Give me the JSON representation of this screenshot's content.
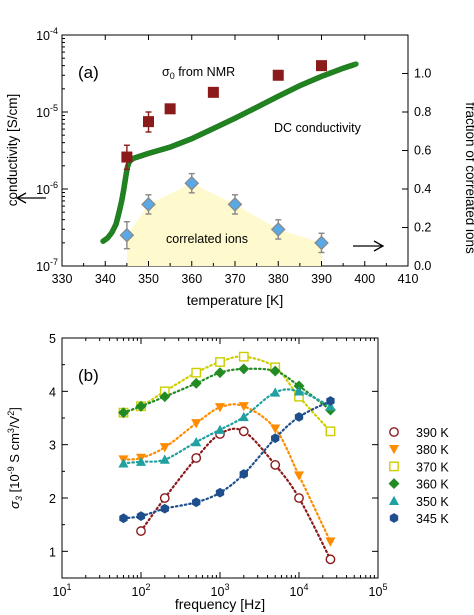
{
  "chart_data": [
    {
      "type": "scatter",
      "panel_label": "(a)",
      "xlabel": "temperature [K]",
      "ylabel": "conductivity [S/cm]",
      "y2label": "fraction of correlated ions",
      "xlim": [
        330,
        410
      ],
      "ylim": [
        1e-07,
        0.0001
      ],
      "yscale": "log",
      "y2lim": [
        0,
        1.2
      ],
      "x_ticks": [
        330,
        340,
        350,
        360,
        370,
        380,
        390,
        400,
        410
      ],
      "y_ticks": [
        "10^-7",
        "10^-6",
        "10^-5",
        "10^-4"
      ],
      "y2_ticks": [
        0.0,
        0.2,
        0.4,
        0.6,
        0.8,
        1.0
      ],
      "annotations": {
        "sigma0_label": "σ",
        "sigma0_sub": "0",
        "sigma0_rest": " from NMR",
        "dc_label": "DC conductivity",
        "correlated_label": "correlated ions"
      },
      "series": [
        {
          "name": "DC conductivity",
          "color": "#228B22",
          "points": [
            [
              339.5,
              2.1e-07
            ],
            [
              340.5,
              2.3e-07
            ],
            [
              341.5,
              2.7e-07
            ],
            [
              342.5,
              3.5e-07
            ],
            [
              343.2,
              5e-07
            ],
            [
              343.8,
              7e-07
            ],
            [
              344.3,
              1e-06
            ],
            [
              344.7,
              1.4e-06
            ],
            [
              345.1,
              1.9e-06
            ],
            [
              345.6,
              2.3e-06
            ],
            [
              346.5,
              2.5e-06
            ],
            [
              350,
              2.9e-06
            ],
            [
              355,
              3.5e-06
            ],
            [
              360,
              4.5e-06
            ],
            [
              365,
              6.1e-06
            ],
            [
              370,
              8.3e-06
            ],
            [
              375,
              1.15e-05
            ],
            [
              380,
              1.6e-05
            ],
            [
              385,
              2.2e-05
            ],
            [
              390,
              2.9e-05
            ],
            [
              395,
              3.7e-05
            ],
            [
              398,
              4.2e-05
            ]
          ]
        },
        {
          "name": "σ0 from NMR",
          "color": "#8B1A1A",
          "points": [
            [
              345,
              2.6e-06
            ],
            [
              350,
              7.5e-06
            ],
            [
              355,
              1.1e-05
            ],
            [
              365,
              1.8e-05
            ],
            [
              380,
              3e-05
            ],
            [
              390,
              4e-05
            ]
          ],
          "errors": [
            [
              345,
              1.8e-06,
              3.7e-06
            ],
            [
              350,
              5.5e-06,
              1e-05
            ]
          ]
        },
        {
          "name": "fraction of correlated ions",
          "axis": "y2",
          "color": "#5AA9E6",
          "points": [
            [
              345,
              0.16
            ],
            [
              350,
              0.32
            ],
            [
              360,
              0.43
            ],
            [
              370,
              0.32
            ],
            [
              380,
              0.19
            ],
            [
              390,
              0.12
            ]
          ],
          "errors": [
            0.07,
            0.05,
            0.05,
            0.05,
            0.05,
            0.05
          ]
        }
      ],
      "shaded_region": {
        "color": "#FFFACD",
        "points": [
          [
            345,
            0.16
          ],
          [
            350,
            0.32
          ],
          [
            360,
            0.43
          ],
          [
            370,
            0.32
          ],
          [
            380,
            0.19
          ],
          [
            390,
            0.12
          ]
        ]
      }
    },
    {
      "type": "line",
      "panel_label": "(b)",
      "xlabel": "frequency [Hz]",
      "ylabel_main": "σ",
      "ylabel_sub": "3",
      "ylabel_rest": " [10",
      "ylabel_exp1": "-9",
      "ylabel_mid": " S cm",
      "ylabel_exp2": "3",
      "ylabel_mid2": "/V",
      "ylabel_exp3": "2",
      "ylabel_end": "]",
      "xscale": "log",
      "xlim": [
        10,
        100000
      ],
      "ylim": [
        0.5,
        5
      ],
      "x_ticks": [
        [
          "10",
          "1"
        ],
        [
          "10",
          "2"
        ],
        [
          "10",
          "3"
        ],
        [
          "10",
          "4"
        ],
        [
          "10",
          "5"
        ]
      ],
      "y_ticks": [
        1,
        2,
        3,
        4,
        5
      ],
      "series": [
        {
          "name": "390 K",
          "color": "#8B1A1A",
          "marker": "circle-open",
          "x": [
            100,
            200,
            500,
            1000,
            2000,
            5000,
            10000,
            25000
          ],
          "y": [
            1.38,
            2.0,
            2.75,
            3.2,
            3.25,
            2.62,
            2.0,
            0.85
          ]
        },
        {
          "name": "380 K",
          "color": "#FF8C00",
          "marker": "triangle-down",
          "x": [
            60,
            100,
            200,
            500,
            1000,
            2000,
            5000,
            10000,
            25000
          ],
          "y": [
            2.72,
            2.75,
            2.95,
            3.4,
            3.7,
            3.72,
            3.3,
            2.42,
            1.18
          ]
        },
        {
          "name": "370 K",
          "color": "#CDCD00",
          "marker": "square-open",
          "x": [
            60,
            100,
            200,
            500,
            1000,
            2000,
            5000,
            10000,
            25000
          ],
          "y": [
            3.6,
            3.72,
            4.0,
            4.35,
            4.55,
            4.65,
            4.45,
            3.9,
            3.25
          ]
        },
        {
          "name": "360 K",
          "color": "#228B22",
          "marker": "diamond",
          "x": [
            60,
            100,
            200,
            500,
            1000,
            2000,
            5000,
            10000,
            25000
          ],
          "y": [
            3.6,
            3.72,
            3.9,
            4.15,
            4.35,
            4.42,
            4.38,
            4.1,
            3.65
          ]
        },
        {
          "name": "350 K",
          "color": "#20A0A0",
          "marker": "triangle-up",
          "x": [
            60,
            100,
            200,
            500,
            1000,
            2000,
            5000,
            10000,
            25000
          ],
          "y": [
            2.65,
            2.68,
            2.72,
            3.05,
            3.28,
            3.52,
            3.98,
            4.0,
            3.72
          ]
        },
        {
          "name": "345 K",
          "color": "#1F4E8C",
          "marker": "hexagon",
          "x": [
            60,
            100,
            200,
            500,
            1000,
            2000,
            5000,
            10000,
            25000
          ],
          "y": [
            1.62,
            1.66,
            1.8,
            1.92,
            2.1,
            2.45,
            3.12,
            3.52,
            3.82
          ]
        }
      ]
    }
  ]
}
